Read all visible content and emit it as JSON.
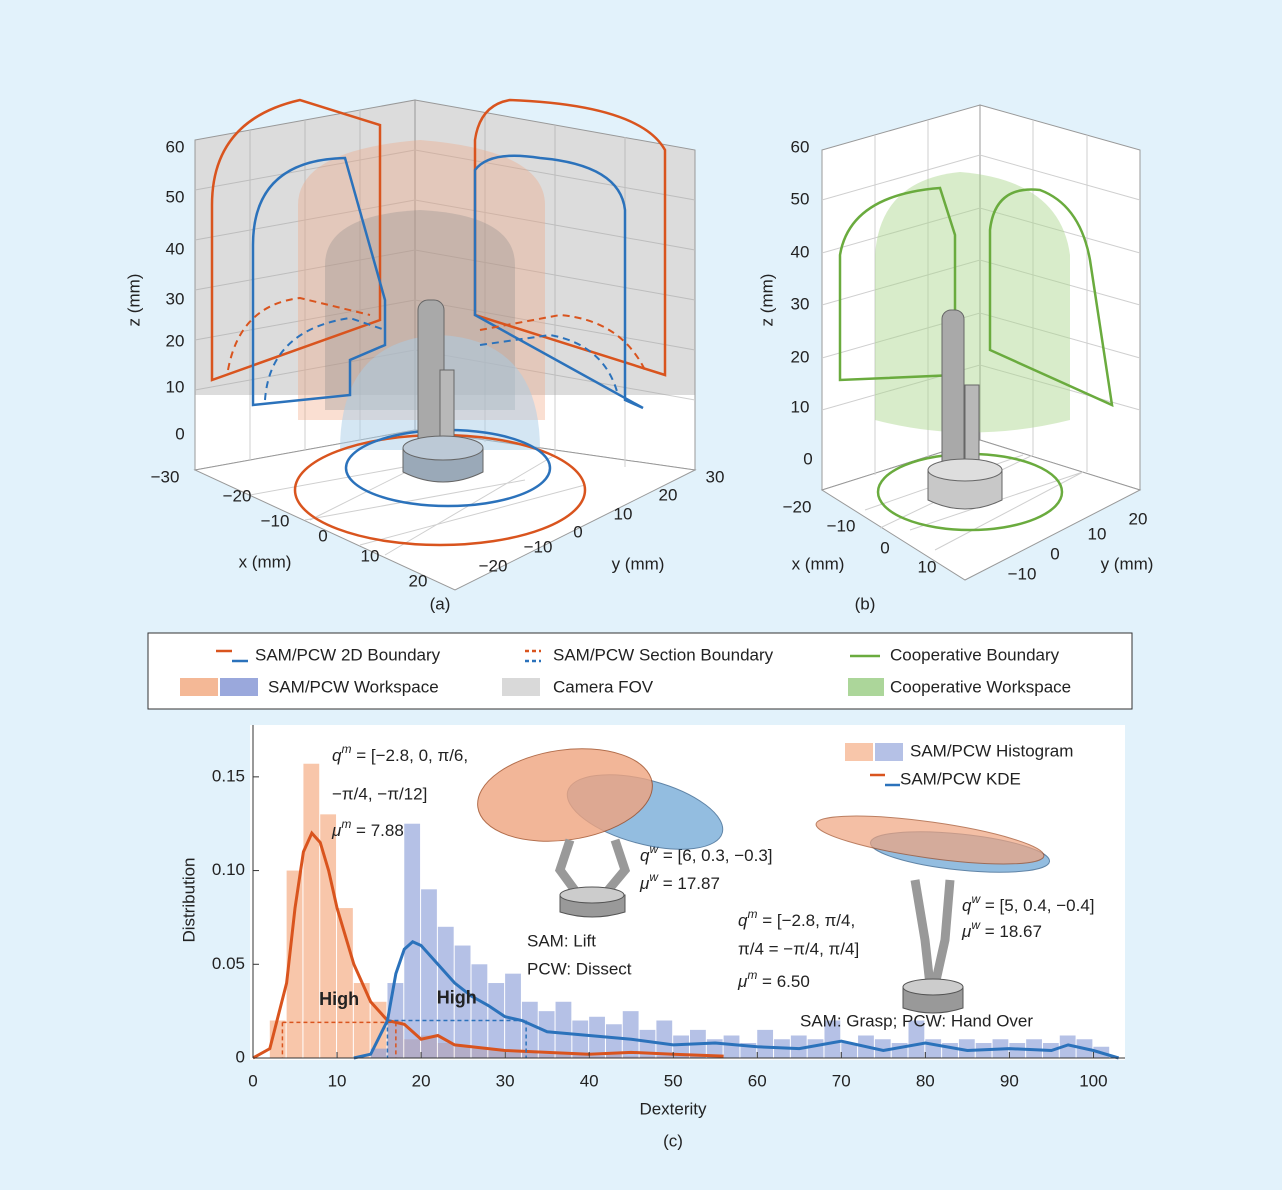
{
  "panel_a": {
    "x_ticks": [
      "−30",
      "−20",
      "−10",
      "0",
      "10",
      "20"
    ],
    "y_ticks": [
      "−20",
      "−10",
      "0",
      "10",
      "20",
      "30"
    ],
    "z_ticks": [
      "60",
      "50",
      "40",
      "30",
      "20",
      "10",
      "0"
    ],
    "x_label": "x (mm)",
    "y_label": "y (mm)",
    "z_label": "z (mm)",
    "caption": "(a)"
  },
  "panel_b": {
    "x_ticks": [
      "−20",
      "−10",
      "0",
      "10"
    ],
    "y_ticks": [
      "−10",
      "0",
      "10",
      "20"
    ],
    "z_ticks": [
      "60",
      "50",
      "40",
      "30",
      "20",
      "10",
      "0"
    ],
    "x_label": "x (mm)",
    "y_label": "y (mm)",
    "z_label": "z (mm)",
    "caption": "(b)"
  },
  "legend": [
    "SAM/PCW 2D Boundary",
    "SAM/PCW Section Boundary",
    "Cooperative Boundary",
    "SAM/PCW Workspace",
    "Camera FOV",
    "Cooperative Workspace"
  ],
  "chart_data": {
    "type": "histogram",
    "x_label": "Dexterity",
    "y_label": "Distribution",
    "caption": "(c)",
    "legend": [
      "SAM/PCW Histogram",
      "SAM/PCW KDE"
    ],
    "legend_position": "upper right",
    "xlim": [
      0,
      104
    ],
    "xticks": [
      0,
      10,
      20,
      30,
      40,
      50,
      60,
      70,
      80,
      90,
      100
    ],
    "ylim": [
      0,
      0.175
    ],
    "yticks": [
      0,
      0.05,
      {
        "value": 0.1,
        "label": "0.10"
      },
      0.15
    ],
    "bins": [
      0,
      2,
      4,
      6,
      8,
      10,
      12,
      14,
      16,
      18,
      20,
      22,
      24,
      26,
      28,
      30,
      32,
      34,
      36,
      38,
      40,
      42,
      44,
      46,
      48,
      50,
      52,
      54,
      56,
      58,
      60,
      62,
      64,
      66,
      68,
      70,
      72,
      74,
      76,
      78,
      80,
      82,
      84,
      86,
      88,
      90,
      92,
      94,
      96,
      98,
      100,
      102,
      104
    ],
    "series": [
      {
        "color": "#f4a77c",
        "values": [
          0,
          0.02,
          0.1,
          0.157,
          0.13,
          0.08,
          0.04,
          0.03,
          0.02,
          0.01,
          0.012,
          0.008,
          0.006,
          0.005,
          0.004,
          0.003,
          0.003,
          0.002,
          0.002,
          0.002,
          0.001,
          0.002,
          0.001,
          0.001,
          0.001,
          0.001,
          0.001,
          0.001,
          0,
          0,
          0,
          0,
          0,
          0,
          0,
          0,
          0,
          0,
          0,
          0,
          0,
          0,
          0,
          0,
          0,
          0,
          0,
          0,
          0,
          0,
          0,
          0
        ]
      },
      {
        "color": "#8e9fd8",
        "values": [
          0,
          0,
          0,
          0,
          0,
          0,
          0,
          0.005,
          0.04,
          0.125,
          0.09,
          0.07,
          0.06,
          0.05,
          0.04,
          0.045,
          0.03,
          0.025,
          0.03,
          0.02,
          0.022,
          0.018,
          0.025,
          0.015,
          0.02,
          0.012,
          0.015,
          0.01,
          0.012,
          0.008,
          0.015,
          0.01,
          0.012,
          0.01,
          0.02,
          0.008,
          0.012,
          0.01,
          0.008,
          0.02,
          0.01,
          0.008,
          0.01,
          0.008,
          0.01,
          0.008,
          0.01,
          0.008,
          0.012,
          0.01,
          0.006,
          0
        ]
      }
    ],
    "kde": [
      {
        "color": "#d9541e",
        "x": [
          0,
          2,
          4,
          5,
          6,
          7,
          8,
          9,
          10,
          12,
          14,
          16,
          18,
          20,
          22,
          24,
          26,
          28,
          30,
          35,
          40,
          45,
          50,
          56
        ],
        "values": [
          0,
          0.005,
          0.04,
          0.08,
          0.11,
          0.12,
          0.115,
          0.1,
          0.08,
          0.05,
          0.03,
          0.02,
          0.018,
          0.01,
          0.012,
          0.007,
          0.006,
          0.005,
          0.004,
          0.003,
          0.002,
          0.003,
          0.002,
          0.001
        ]
      },
      {
        "color": "#2b72bb",
        "x": [
          12,
          14,
          16,
          17,
          18,
          19,
          20,
          22,
          24,
          26,
          28,
          30,
          32,
          35,
          40,
          45,
          50,
          55,
          60,
          65,
          70,
          75,
          80,
          85,
          90,
          95,
          97,
          100,
          103
        ],
        "values": [
          0,
          0.002,
          0.02,
          0.045,
          0.058,
          0.062,
          0.06,
          0.05,
          0.04,
          0.033,
          0.028,
          0.022,
          0.02,
          0.014,
          0.012,
          0.01,
          0.007,
          0.008,
          0.006,
          0.005,
          0.009,
          0.004,
          0.008,
          0.004,
          0.005,
          0.004,
          0.007,
          0.004,
          0
        ]
      }
    ],
    "ranges": [
      {
        "label": "High",
        "from": 3.5,
        "to": 17,
        "y": 0.019,
        "color": "#d9541e"
      },
      {
        "label": "High",
        "from": 16,
        "to": 32.5,
        "y": 0.02,
        "color": "#2b72bb"
      }
    ],
    "annotations": [
      {
        "lines": [
          {
            "var": "q",
            "sup": "m",
            "text": " = [−2.8, 0, π/6,"
          },
          "−π/4, −π/12]",
          {
            "var": "μ",
            "sup": "m",
            "text": " = 7.88"
          }
        ]
      },
      {
        "lines": [
          {
            "var": "q",
            "sup": "w",
            "text": " = [6, 0.3, −0.3]"
          },
          {
            "var": "μ",
            "sup": "w",
            "text": " = 17.87"
          }
        ]
      },
      {
        "lines": [
          "SAM: Lift",
          "PCW: Dissect"
        ]
      },
      {
        "lines": [
          {
            "var": "q",
            "sup": "m",
            "text": " = [−2.8, π/4,"
          },
          "π/4 = −π/4, π/4]",
          {
            "var": "μ",
            "sup": "m",
            "text": " = 6.50"
          }
        ]
      },
      {
        "lines": [
          {
            "var": "q",
            "sup": "w",
            "text": " = [5, 0.4, −0.4]"
          },
          {
            "var": "μ",
            "sup": "w",
            "text": " = 18.67"
          }
        ]
      },
      {
        "lines": [
          "SAM: Grasp; PCW: Hand Over"
        ]
      }
    ]
  }
}
